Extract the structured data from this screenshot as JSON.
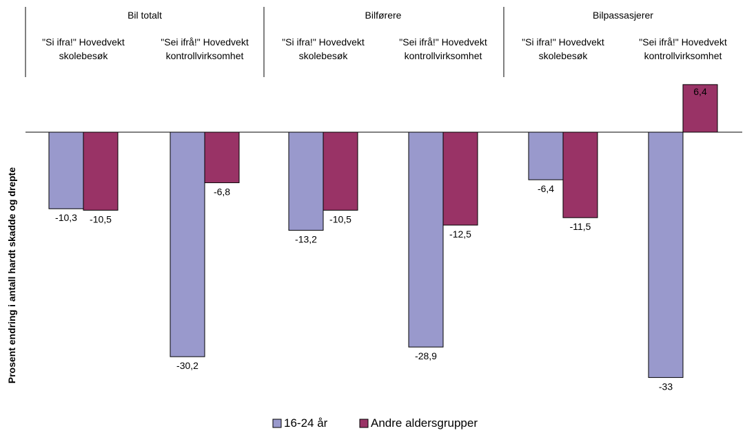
{
  "chart_data": {
    "type": "bar",
    "ylabel": "Prosent endring i antall hardt skadde og drepte",
    "groups": [
      {
        "label": "Bil totalt",
        "categories": [
          {
            "line1": "\"Si ifra!\" Hovedvekt",
            "line2": "skolebesøk"
          },
          {
            "line1": "\"Sei ifrå!\" Hovedvekt",
            "line2": "kontrollvirksomhet"
          }
        ]
      },
      {
        "label": "Bilførere",
        "categories": [
          {
            "line1": "\"Si ifra!\" Hovedvekt",
            "line2": "skolebesøk"
          },
          {
            "line1": "\"Sei ifrå!\" Hovedvekt",
            "line2": "kontrollvirksomhet"
          }
        ]
      },
      {
        "label": "Bilpassasjerer",
        "categories": [
          {
            "line1": "\"Si ifra!\" Hovedvekt",
            "line2": "skolebesøk"
          },
          {
            "line1": "\"Sei ifrå!\" Hovedvekt",
            "line2": "kontrollvirksomhet"
          }
        ]
      }
    ],
    "series": [
      {
        "name": "16-24 år",
        "color": "#9999cc",
        "values": [
          -10.3,
          -30.2,
          -13.2,
          -28.9,
          -6.4,
          -33
        ],
        "labels": [
          "-10,3",
          "-30,2",
          "-13,2",
          "-28,9",
          "-6,4",
          "-33"
        ]
      },
      {
        "name": "Andre aldersgrupper",
        "color": "#993366",
        "values": [
          -10.5,
          -6.8,
          -10.5,
          -12.5,
          -11.5,
          6.4
        ],
        "labels": [
          "-10,5",
          "-6,8",
          "-10,5",
          "-12,5",
          "-11,5",
          "6,4"
        ]
      }
    ],
    "ylim": [
      -33,
      6.4
    ],
    "grid": false,
    "legend_position": "bottom"
  }
}
